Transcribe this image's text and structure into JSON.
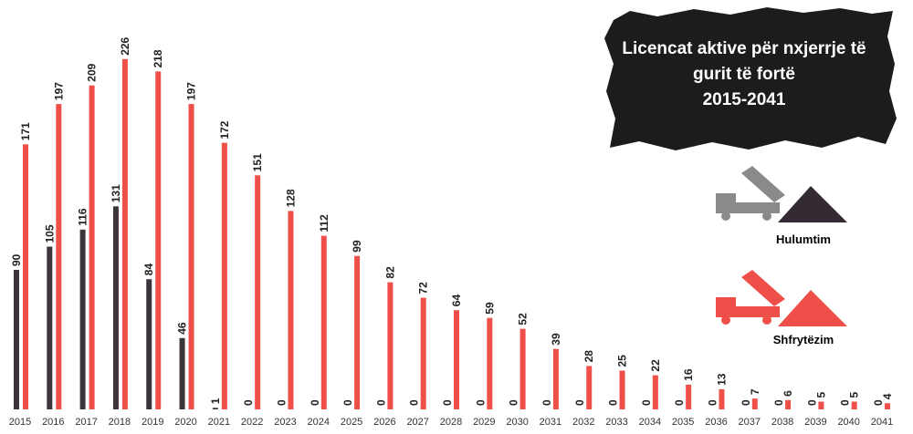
{
  "chart_data": {
    "type": "bar",
    "title": "Licencat aktive për nxjerrje të gurit të fortë",
    "subtitle": "2015-2041",
    "categories": [
      "2015",
      "2016",
      "2017",
      "2018",
      "2019",
      "2020",
      "2021",
      "2022",
      "2023",
      "2024",
      "2025",
      "2026",
      "2027",
      "2028",
      "2029",
      "2030",
      "2031",
      "2032",
      "2033",
      "2034",
      "2035",
      "2036",
      "2037",
      "2038",
      "2039",
      "2040",
      "2041"
    ],
    "series": [
      {
        "name": "Hulumtim",
        "color": "#3b353b",
        "values": [
          90,
          105,
          116,
          131,
          84,
          46,
          1,
          0,
          0,
          0,
          0,
          0,
          0,
          0,
          0,
          0,
          0,
          0,
          0,
          0,
          0,
          0,
          0,
          0,
          0,
          0,
          0
        ]
      },
      {
        "name": "Shfrytëzim",
        "color": "#ef4f49",
        "values": [
          171,
          197,
          209,
          226,
          218,
          197,
          172,
          151,
          128,
          112,
          99,
          82,
          72,
          64,
          59,
          52,
          39,
          28,
          25,
          22,
          16,
          13,
          7,
          6,
          5,
          5,
          4
        ]
      }
    ]
  }
}
